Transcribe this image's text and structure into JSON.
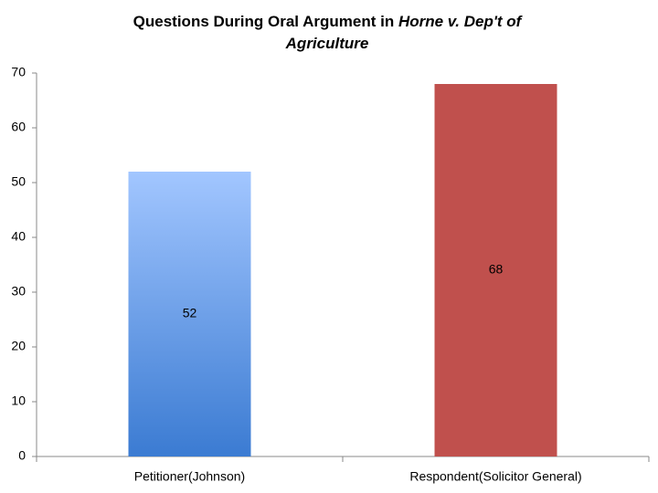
{
  "chart_data": {
    "type": "bar",
    "title": [
      "Questions During Oral Argument in",
      "Horne v. Dep't of Agriculture"
    ],
    "categories": [
      "Petitioner(Johnson)",
      "Respondent(Solicitor General)"
    ],
    "values": [
      52,
      68
    ],
    "fills": [
      {
        "top": "#a2c6ff",
        "bottom": "#3b7bd2"
      },
      {
        "top": "#c0504d",
        "bottom": "#c0504d"
      }
    ],
    "ylim": [
      0,
      70
    ],
    "yticks": [
      0,
      10,
      20,
      30,
      40,
      50,
      60,
      70
    ],
    "grid": false
  }
}
